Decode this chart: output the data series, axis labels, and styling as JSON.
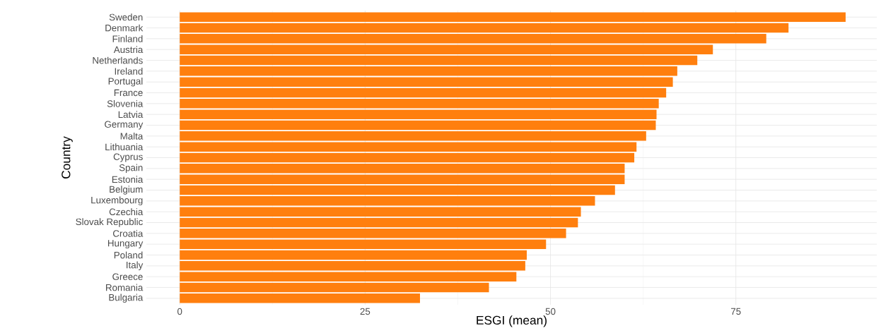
{
  "chart_data": {
    "type": "bar",
    "orientation": "horizontal",
    "xlabel": "ESGI (mean)",
    "ylabel": "Country",
    "categories": [
      "Sweden",
      "Denmark",
      "Finland",
      "Austria",
      "Netherlands",
      "Ireland",
      "Portugal",
      "France",
      "Slovenia",
      "Latvia",
      "Germany",
      "Malta",
      "Lithuania",
      "Cyprus",
      "Spain",
      "Estonia",
      "Belgium",
      "Luxembourg",
      "Czechia",
      "Slovak Republic",
      "Croatia",
      "Hungary",
      "Poland",
      "Italy",
      "Greece",
      "Romania",
      "Bulgaria"
    ],
    "values": [
      89.8,
      82.1,
      79.1,
      71.9,
      69.8,
      67.1,
      66.5,
      65.6,
      64.6,
      64.3,
      64.2,
      62.9,
      61.6,
      61.3,
      60.0,
      60.0,
      58.7,
      56.0,
      54.1,
      53.7,
      52.1,
      49.4,
      46.8,
      46.6,
      45.4,
      41.7,
      32.4
    ],
    "color": "#ff7f0e",
    "xlim": [
      -4.5,
      94
    ],
    "xticks": [
      0,
      25,
      50,
      75
    ],
    "grid": true
  }
}
